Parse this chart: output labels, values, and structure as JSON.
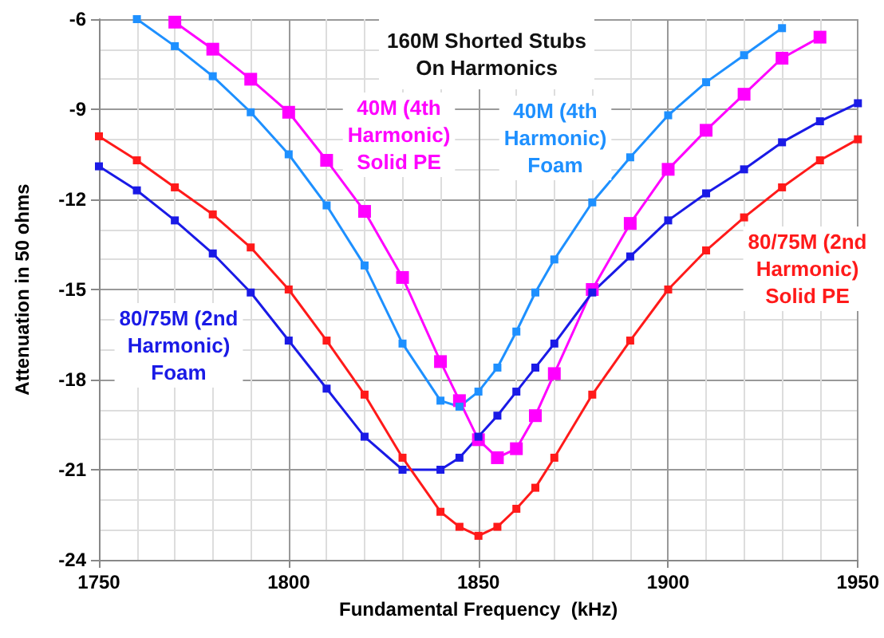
{
  "chart_data": {
    "type": "line",
    "title": "160M Shorted Stubs\nOn Harmonics",
    "xlabel": "Fundamental Frequency  (kHz)",
    "ylabel": "Attenuation in 50 ohms",
    "xlim": [
      1750,
      1950
    ],
    "xticks": [
      1750,
      1800,
      1850,
      1900,
      1950
    ],
    "ylim": [
      -24,
      -6
    ],
    "yticks": [
      -24,
      -21,
      -18,
      -15,
      -12,
      -9,
      -6
    ],
    "grid": true,
    "legend": false,
    "marker": "square",
    "line_style": "solid",
    "series": [
      {
        "name": "40M (4th\nHarmonic)\nSolid PE",
        "color": "#ff00ff",
        "x": [
          1770,
          1780,
          1790,
          1800,
          1810,
          1820,
          1830,
          1840,
          1845,
          1850,
          1855,
          1860,
          1865,
          1870,
          1880,
          1890,
          1900,
          1910,
          1920,
          1930,
          1940
        ],
        "values": [
          -6.1,
          -7.0,
          -8.0,
          -9.1,
          -10.7,
          -12.4,
          -14.6,
          -17.4,
          -18.7,
          -20.0,
          -20.6,
          -20.3,
          -19.2,
          -17.8,
          -15.0,
          -12.8,
          -11.0,
          -9.7,
          -8.5,
          -7.3,
          -6.6
        ]
      },
      {
        "name": "40M (4th\nHarmonic)\nFoam",
        "color": "#1e90ff",
        "x": [
          1760,
          1770,
          1780,
          1790,
          1800,
          1810,
          1820,
          1830,
          1840,
          1845,
          1850,
          1855,
          1860,
          1865,
          1870,
          1880,
          1890,
          1900,
          1910,
          1920,
          1930
        ],
        "values": [
          -6.0,
          -6.9,
          -7.9,
          -9.1,
          -10.5,
          -12.2,
          -14.2,
          -16.8,
          -18.7,
          -18.9,
          -18.4,
          -17.6,
          -16.4,
          -15.1,
          -14.0,
          -12.1,
          -10.6,
          -9.2,
          -8.1,
          -7.2,
          -6.3
        ]
      },
      {
        "name": "80/75M (2nd\nHarmonic)\nFoam",
        "color": "#1a1ae6",
        "x": [
          1750,
          1760,
          1770,
          1780,
          1790,
          1800,
          1810,
          1820,
          1830,
          1840,
          1845,
          1850,
          1855,
          1860,
          1865,
          1870,
          1880,
          1890,
          1900,
          1910,
          1920,
          1930,
          1940,
          1950
        ],
        "values": [
          -10.9,
          -11.7,
          -12.7,
          -13.8,
          -15.1,
          -16.7,
          -18.3,
          -19.9,
          -21.0,
          -21.0,
          -20.6,
          -19.9,
          -19.2,
          -18.4,
          -17.6,
          -16.8,
          -15.1,
          -13.9,
          -12.7,
          -11.8,
          -11.0,
          -10.1,
          -9.4,
          -8.8
        ]
      },
      {
        "name": "80/75M (2nd\nHarmonic)\nSolid PE",
        "color": "#ff1a1a",
        "x": [
          1750,
          1760,
          1770,
          1780,
          1790,
          1800,
          1810,
          1820,
          1830,
          1840,
          1845,
          1850,
          1855,
          1860,
          1865,
          1870,
          1880,
          1890,
          1900,
          1910,
          1920,
          1930,
          1940,
          1950
        ],
        "values": [
          -9.9,
          -10.7,
          -11.6,
          -12.5,
          -13.6,
          -15.0,
          -16.7,
          -18.5,
          -20.6,
          -22.4,
          -22.9,
          -23.2,
          -22.9,
          -22.3,
          -21.6,
          -20.6,
          -18.5,
          -16.7,
          -15.0,
          -13.7,
          -12.6,
          -11.6,
          -10.7,
          -10.0
        ]
      }
    ]
  }
}
